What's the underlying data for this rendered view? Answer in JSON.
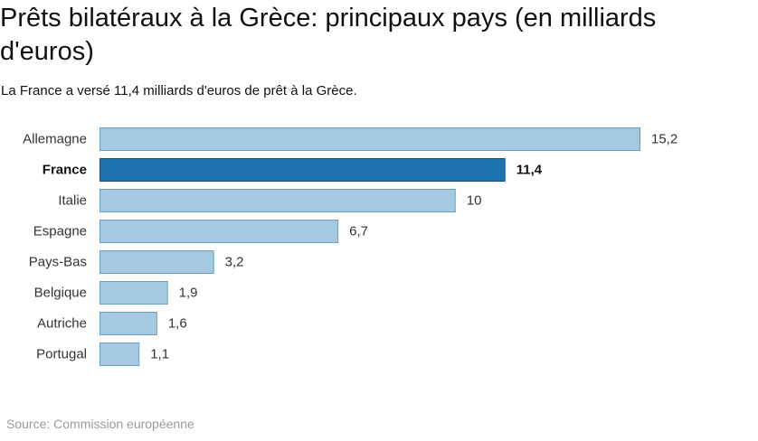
{
  "title": "Prêts bilatéraux à la Grèce: principaux pays (en milliards d'euros)",
  "subtitle": "La France a versé 11,4 milliards d'euros de prêt à la Grèce.",
  "source": "Source: Commission européenne",
  "chart_data": {
    "type": "bar",
    "orientation": "horizontal",
    "title": "Prêts bilatéraux à la Grèce: principaux pays (en milliards d'euros)",
    "xlabel": "",
    "ylabel": "",
    "categories": [
      "Allemagne",
      "France",
      "Italie",
      "Espagne",
      "Pays-Bas",
      "Belgique",
      "Autriche",
      "Portugal"
    ],
    "values": [
      15.2,
      11.4,
      10,
      6.7,
      3.2,
      1.9,
      1.6,
      1.1
    ],
    "value_labels": [
      "15,2",
      "11,4",
      "10",
      "6,7",
      "3,2",
      "1,9",
      "1,6",
      "1,1"
    ],
    "highlight": "France",
    "xlim": [
      0,
      15.2
    ],
    "colors": {
      "default": "#a6c9e2",
      "highlight": "#1f72b2"
    }
  }
}
